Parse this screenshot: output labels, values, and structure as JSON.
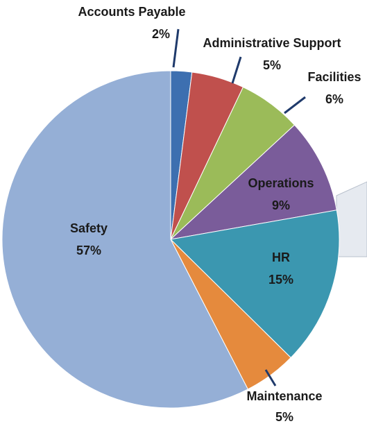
{
  "chart_data": {
    "type": "pie",
    "categories": [
      "Accounts Payable",
      "Administrative Support",
      "Facilities",
      "Operations",
      "HR",
      "Maintenance",
      "Safety"
    ],
    "values": [
      2,
      5,
      6,
      9,
      15,
      5,
      57
    ],
    "value_labels": [
      "2%",
      "5%",
      "6%",
      "9%",
      "15%",
      "5%",
      "57%"
    ],
    "colors": [
      "#3d6fb0",
      "#c0504d",
      "#9bbb59",
      "#7a5c9a",
      "#3b97b0",
      "#e58a3d",
      "#95afd6"
    ]
  }
}
